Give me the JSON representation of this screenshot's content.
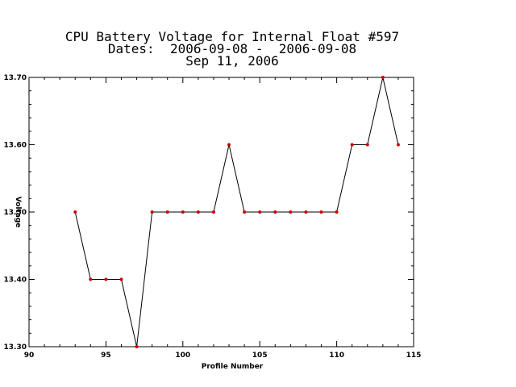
{
  "chart_data": {
    "type": "line",
    "title": "CPU Battery Voltage for Internal Float #597",
    "subtitle": "Dates:  2006-09-08 -  2006-09-08",
    "date_line": "Sep 11, 2006",
    "xlabel": "Profile Number",
    "ylabel": "Voltage",
    "xlim": [
      90,
      115
    ],
    "ylim": [
      13.3,
      13.7
    ],
    "x_ticks": [
      "90",
      "95",
      "100",
      "105",
      "110",
      "115"
    ],
    "y_ticks": [
      "13.30",
      "13.40",
      "13.50",
      "13.60",
      "13.70"
    ],
    "grid": false,
    "series": [
      {
        "x": [
          93,
          94,
          95,
          96,
          97,
          98,
          99,
          100,
          101,
          102,
          103,
          104,
          105,
          106,
          107,
          108,
          109,
          110,
          111,
          112,
          113,
          114
        ],
        "y": [
          13.5,
          13.4,
          13.4,
          13.4,
          13.3,
          13.5,
          13.5,
          13.5,
          13.5,
          13.5,
          13.6,
          13.5,
          13.5,
          13.5,
          13.5,
          13.5,
          13.5,
          13.5,
          13.6,
          13.6,
          13.7,
          13.6
        ]
      }
    ],
    "colors": {
      "line": "#000000",
      "marker": "#cc0000",
      "axes": "#000000"
    }
  }
}
